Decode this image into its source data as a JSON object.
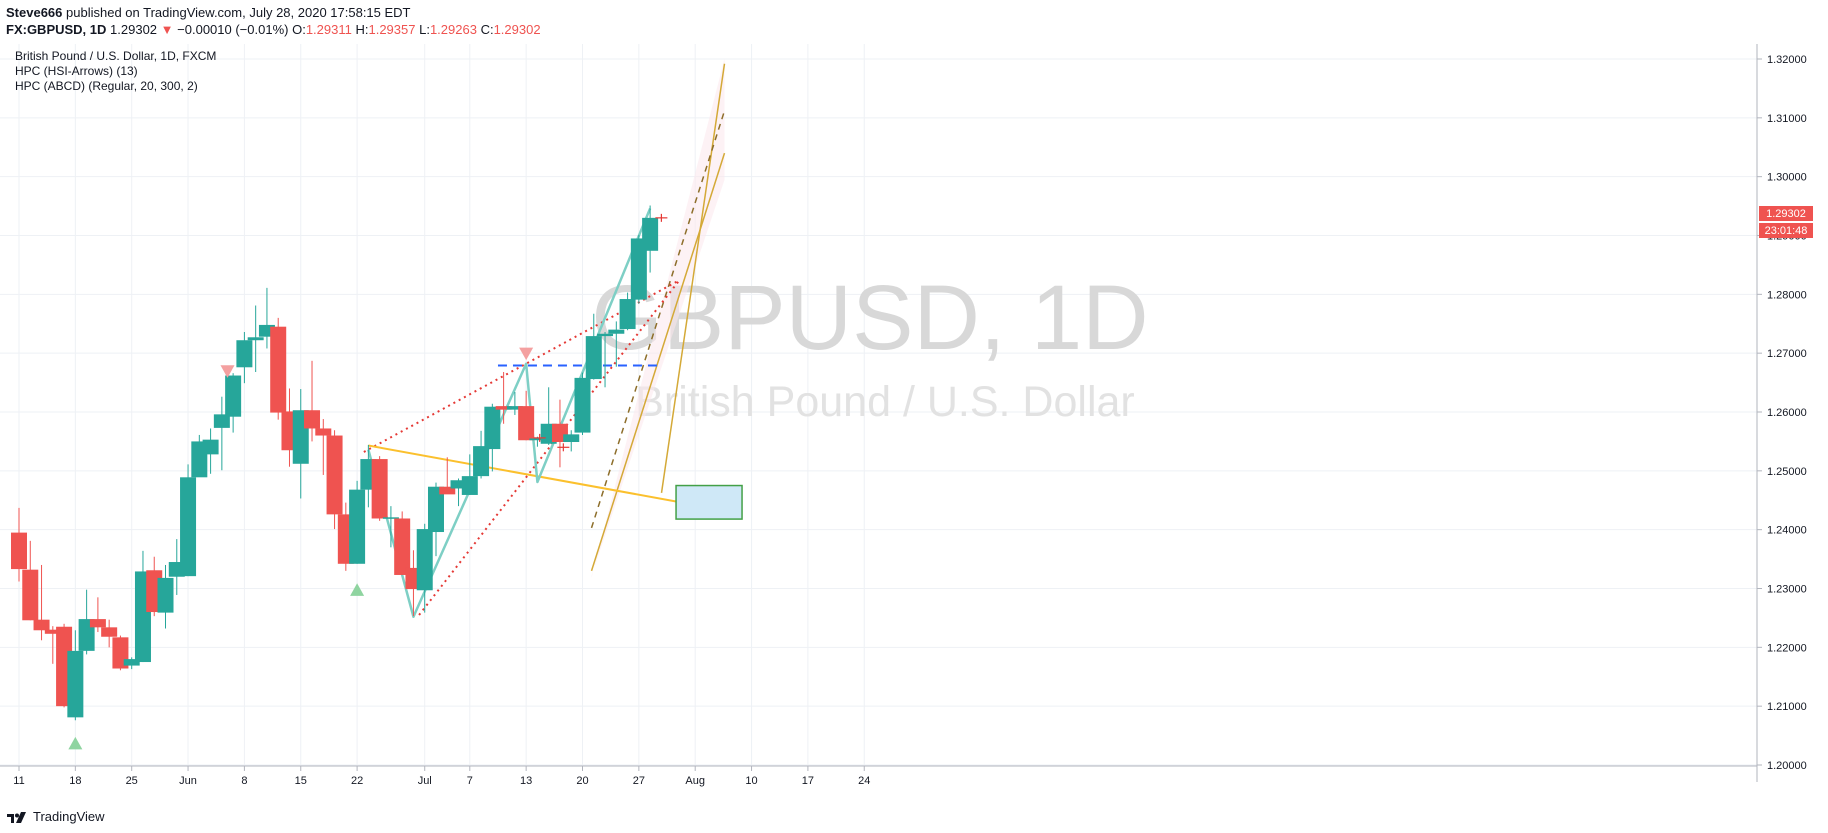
{
  "header": {
    "publisher": "Steve666",
    "published_text": "published on TradingView.com, July 28, 2020 17:58:15 EDT",
    "symbol_line": "FX:GBPUSD, 1D",
    "last_price": "1.29302",
    "change_arrow": "▼",
    "change": "−0.00010 (−0.01%)",
    "o_label": "O:",
    "o_value": "1.29311",
    "h_label": "H:",
    "h_value": "1.29357",
    "l_label": "L:",
    "l_value": "1.29263",
    "c_label": "C:",
    "c_value": "1.29302"
  },
  "legend": [
    "British Pound / U.S. Dollar, 1D, FXCM",
    "HPC (HSI-Arrows) (13)",
    "HPC (ABCD) (Regular, 20, 300, 2)"
  ],
  "watermark": {
    "symbol": "GBPUSD, 1D",
    "name": "British Pound / U.S. Dollar"
  },
  "price_badge": {
    "price": "1.29302",
    "countdown": "23:01:48"
  },
  "footer": {
    "brand": "TradingView"
  },
  "colors": {
    "up": "#26a69a",
    "down": "#ef5350",
    "wave": "#7ecfc5",
    "channel": "#d4a937",
    "trend": "#fbc02d",
    "dotted": "#e53935",
    "dashed": "#2962ff"
  },
  "chart_data": {
    "type": "candlestick",
    "ylim": [
      1.2,
      1.32
    ],
    "y_ticks": [
      "1.20000",
      "1.21000",
      "1.22000",
      "1.23000",
      "1.24000",
      "1.25000",
      "1.26000",
      "1.27000",
      "1.28000",
      "1.29000",
      "1.30000",
      "1.31000",
      "1.32000"
    ],
    "x_ticks": [
      {
        "label": "11",
        "i": 0
      },
      {
        "label": "18",
        "i": 5
      },
      {
        "label": "25",
        "i": 10
      },
      {
        "label": "Jun",
        "i": 15
      },
      {
        "label": "8",
        "i": 20
      },
      {
        "label": "15",
        "i": 25
      },
      {
        "label": "22",
        "i": 30
      },
      {
        "label": "Jul",
        "i": 36
      },
      {
        "label": "7",
        "i": 40
      },
      {
        "label": "13",
        "i": 45
      },
      {
        "label": "20",
        "i": 50
      },
      {
        "label": "27",
        "i": 55
      },
      {
        "label": "Aug",
        "i": 60
      },
      {
        "label": "10",
        "i": 65
      },
      {
        "label": "17",
        "i": 70
      },
      {
        "label": "24",
        "i": 75
      }
    ],
    "candles": [
      {
        "o": 1.2395,
        "h": 1.2437,
        "l": 1.2312,
        "c": 1.2333
      },
      {
        "o": 1.2332,
        "h": 1.2381,
        "l": 1.2246,
        "c": 1.2246
      },
      {
        "o": 1.2247,
        "h": 1.234,
        "l": 1.2212,
        "c": 1.2229
      },
      {
        "o": 1.223,
        "h": 1.2236,
        "l": 1.2172,
        "c": 1.2223
      },
      {
        "o": 1.2235,
        "h": 1.224,
        "l": 1.2098,
        "c": 1.21
      },
      {
        "o": 1.2081,
        "h": 1.2229,
        "l": 1.2076,
        "c": 1.2194
      },
      {
        "o": 1.2194,
        "h": 1.2298,
        "l": 1.2188,
        "c": 1.2248
      },
      {
        "o": 1.2248,
        "h": 1.2285,
        "l": 1.2226,
        "c": 1.2234
      },
      {
        "o": 1.2234,
        "h": 1.2247,
        "l": 1.22,
        "c": 1.2218
      },
      {
        "o": 1.2217,
        "h": 1.222,
        "l": 1.2161,
        "c": 1.2164
      },
      {
        "o": 1.2169,
        "h": 1.2183,
        "l": 1.2163,
        "c": 1.218
      },
      {
        "o": 1.2175,
        "h": 1.2364,
        "l": 1.2175,
        "c": 1.2329
      },
      {
        "o": 1.2331,
        "h": 1.2354,
        "l": 1.2253,
        "c": 1.226
      },
      {
        "o": 1.2259,
        "h": 1.234,
        "l": 1.2232,
        "c": 1.2318
      },
      {
        "o": 1.232,
        "h": 1.2384,
        "l": 1.2289,
        "c": 1.2345
      },
      {
        "o": 1.2321,
        "h": 1.2511,
        "l": 1.2321,
        "c": 1.2489
      },
      {
        "o": 1.2489,
        "h": 1.2561,
        "l": 1.249,
        "c": 1.255
      },
      {
        "o": 1.2528,
        "h": 1.2572,
        "l": 1.2495,
        "c": 1.2553
      },
      {
        "o": 1.2573,
        "h": 1.2626,
        "l": 1.2501,
        "c": 1.2596
      },
      {
        "o": 1.2592,
        "h": 1.2666,
        "l": 1.2565,
        "c": 1.2662
      },
      {
        "o": 1.2676,
        "h": 1.2736,
        "l": 1.2649,
        "c": 1.2722
      },
      {
        "o": 1.2722,
        "h": 1.2781,
        "l": 1.2668,
        "c": 1.2727
      },
      {
        "o": 1.2728,
        "h": 1.2811,
        "l": 1.2708,
        "c": 1.2748
      },
      {
        "o": 1.2745,
        "h": 1.276,
        "l": 1.2587,
        "c": 1.2599
      },
      {
        "o": 1.2601,
        "h": 1.264,
        "l": 1.2507,
        "c": 1.2535
      },
      {
        "o": 1.2512,
        "h": 1.2639,
        "l": 1.2453,
        "c": 1.2603
      },
      {
        "o": 1.2603,
        "h": 1.2687,
        "l": 1.255,
        "c": 1.2572
      },
      {
        "o": 1.2572,
        "h": 1.2588,
        "l": 1.2493,
        "c": 1.256
      },
      {
        "o": 1.256,
        "h": 1.2569,
        "l": 1.2401,
        "c": 1.2426
      },
      {
        "o": 1.2426,
        "h": 1.2446,
        "l": 1.233,
        "c": 1.2342
      },
      {
        "o": 1.2342,
        "h": 1.2483,
        "l": 1.2342,
        "c": 1.2468
      },
      {
        "o": 1.2468,
        "h": 1.2544,
        "l": 1.2438,
        "c": 1.252
      },
      {
        "o": 1.252,
        "h": 1.2525,
        "l": 1.2415,
        "c": 1.2419
      },
      {
        "o": 1.2419,
        "h": 1.244,
        "l": 1.237,
        "c": 1.2421
      },
      {
        "o": 1.2419,
        "h": 1.2431,
        "l": 1.2323,
        "c": 1.2323
      },
      {
        "o": 1.2335,
        "h": 1.2365,
        "l": 1.2253,
        "c": 1.2299
      },
      {
        "o": 1.2297,
        "h": 1.241,
        "l": 1.2259,
        "c": 1.2401
      },
      {
        "o": 1.2396,
        "h": 1.248,
        "l": 1.2355,
        "c": 1.2473
      },
      {
        "o": 1.2473,
        "h": 1.2523,
        "l": 1.2464,
        "c": 1.246
      },
      {
        "o": 1.247,
        "h": 1.2487,
        "l": 1.244,
        "c": 1.2484
      },
      {
        "o": 1.2459,
        "h": 1.2528,
        "l": 1.2459,
        "c": 1.2491
      },
      {
        "o": 1.2491,
        "h": 1.2568,
        "l": 1.2487,
        "c": 1.2542
      },
      {
        "o": 1.2537,
        "h": 1.2614,
        "l": 1.2499,
        "c": 1.2609
      },
      {
        "o": 1.261,
        "h": 1.2668,
        "l": 1.258,
        "c": 1.2604
      },
      {
        "o": 1.2604,
        "h": 1.2634,
        "l": 1.2595,
        "c": 1.261
      },
      {
        "o": 1.261,
        "h": 1.2636,
        "l": 1.2552,
        "c": 1.2552
      },
      {
        "o": 1.2552,
        "h": 1.2558,
        "l": 1.2541,
        "c": 1.2555
      },
      {
        "o": 1.2546,
        "h": 1.2642,
        "l": 1.2544,
        "c": 1.258
      },
      {
        "o": 1.258,
        "h": 1.2621,
        "l": 1.2506,
        "c": 1.2549
      },
      {
        "o": 1.2549,
        "h": 1.2569,
        "l": 1.2533,
        "c": 1.2562
      },
      {
        "o": 1.2565,
        "h": 1.2667,
        "l": 1.2561,
        "c": 1.2658
      },
      {
        "o": 1.2656,
        "h": 1.2767,
        "l": 1.2655,
        "c": 1.2729
      },
      {
        "o": 1.2729,
        "h": 1.2736,
        "l": 1.2642,
        "c": 1.2733
      },
      {
        "o": 1.2733,
        "h": 1.2754,
        "l": 1.2677,
        "c": 1.274
      },
      {
        "o": 1.2741,
        "h": 1.2803,
        "l": 1.2739,
        "c": 1.2792
      },
      {
        "o": 1.2791,
        "h": 1.2901,
        "l": 1.2784,
        "c": 1.2895
      },
      {
        "o": 1.2874,
        "h": 1.2951,
        "l": 1.2837,
        "c": 1.293
      }
    ]
  }
}
